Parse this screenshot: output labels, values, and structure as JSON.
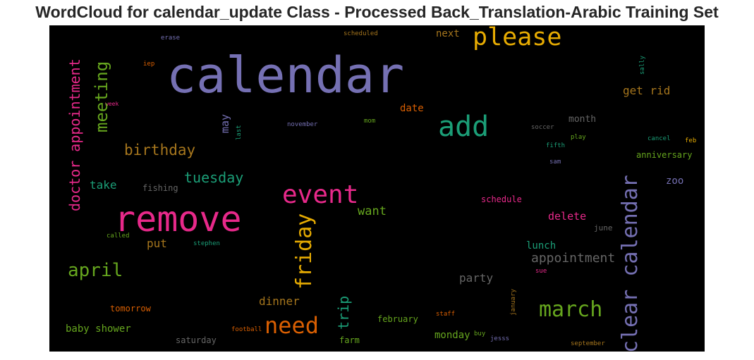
{
  "title": "WordCloud for calendar_update Class - Processed Back_Translation-Arabic Training Set",
  "colors": {
    "purple": "#7570b3",
    "green": "#1b9e77",
    "orange": "#d95f02",
    "pink": "#e7298a",
    "lime": "#66a61e",
    "gold": "#e6ab02",
    "brown": "#a6761d",
    "gray": "#666666"
  },
  "words": {
    "calendar": "calendar",
    "remove": "remove",
    "please": "please",
    "add": "add",
    "event": "event",
    "clear_calendar": "clear calendar",
    "march": "march",
    "need": "need",
    "friday": "friday",
    "doctor_appointment": "doctor appointment",
    "meeting": "meeting",
    "april": "april",
    "birthday": "birthday",
    "tuesday": "tuesday",
    "appointment": "appointment",
    "trip": "trip",
    "want": "want",
    "take": "take",
    "dinner": "dinner",
    "put": "put",
    "may": "may",
    "get_rid": "get rid",
    "delete": "delete",
    "party": "party",
    "lunch": "lunch",
    "baby_shower": "baby shower",
    "monday": "monday",
    "date": "date",
    "next": "next",
    "zoo": "zoo",
    "fishing": "fishing",
    "month": "month",
    "anniversary": "anniversary",
    "tomorrow": "tomorrow",
    "february": "february",
    "schedule": "schedule",
    "saturday": "saturday",
    "farm": "farm",
    "june": "june",
    "january": "january",
    "erase": "erase",
    "scheduled": "scheduled",
    "iep": "iep",
    "week": "week",
    "november": "november",
    "mom": "mom",
    "last": "last",
    "soccer": "soccer",
    "play": "play",
    "fifth": "fifth",
    "sam": "sam",
    "cancel": "cancel",
    "feb": "feb",
    "sally": "sally",
    "called": "called",
    "stephen": "stephen",
    "sue": "sue",
    "staff": "staff",
    "buy": "buy",
    "jesss": "jesss",
    "football": "football",
    "september": "september"
  }
}
